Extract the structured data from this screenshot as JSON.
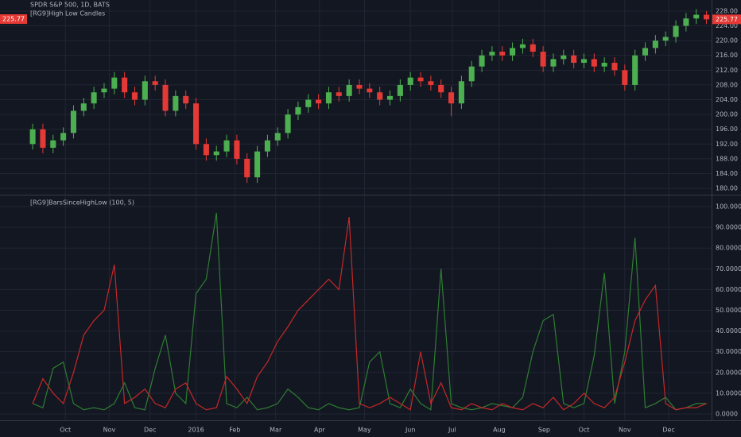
{
  "chart_data": [
    {
      "type": "candlestick",
      "title": "SPDR S&P 500, 1D, BATS",
      "subtitle": "[RG9]High Low Candles",
      "up_color": "#4caf50",
      "down_color": "#e53935",
      "x": [
        0,
        1,
        2,
        3,
        4,
        5,
        6,
        7,
        8,
        9,
        10,
        11,
        12,
        13,
        14,
        15,
        16,
        17,
        18,
        19,
        20,
        21,
        22,
        23,
        24,
        25,
        26,
        27,
        28,
        29,
        30,
        31,
        32,
        33,
        34,
        35,
        36,
        37,
        38,
        39,
        40,
        41,
        42,
        43,
        44,
        45,
        46,
        47,
        48,
        49,
        50,
        51,
        52,
        53,
        54,
        55,
        56,
        57,
        58,
        59,
        60,
        61,
        62,
        63,
        64,
        65,
        66
      ],
      "open": [
        192,
        196,
        191,
        193,
        195,
        201,
        203,
        206,
        207,
        210,
        206,
        204,
        209,
        208,
        201,
        205,
        203,
        192,
        189,
        190,
        193,
        188,
        183,
        190,
        193,
        195,
        200,
        202,
        204,
        203,
        206,
        205,
        208,
        207,
        206,
        204,
        205,
        208,
        210,
        209,
        208,
        206,
        203,
        209,
        213,
        216,
        217,
        216,
        218,
        219,
        217,
        213,
        215,
        216,
        214,
        215,
        213,
        214,
        212,
        208,
        216,
        218,
        220,
        221,
        224,
        226,
        227
      ],
      "high": [
        197.5,
        197.5,
        194.5,
        196.5,
        202.5,
        204.5,
        207.5,
        208.5,
        211.5,
        211.5,
        207.5,
        210.5,
        210.5,
        209.5,
        206.5,
        206.5,
        204.5,
        193.5,
        191.5,
        194.5,
        194.5,
        189.5,
        191.5,
        194.5,
        196.5,
        201.5,
        203.5,
        205.5,
        205.5,
        207.5,
        207.5,
        209.5,
        209.5,
        208.5,
        207.5,
        206.5,
        209.5,
        211.5,
        211.5,
        210.5,
        209.5,
        207.5,
        210.5,
        214.5,
        217.5,
        218.5,
        218.5,
        219.5,
        220.5,
        220.5,
        218.5,
        216.5,
        217.5,
        217.5,
        216.5,
        216.5,
        215.5,
        215.5,
        213.5,
        217.5,
        219.5,
        221.5,
        222.5,
        225.5,
        227.5,
        228.5,
        228
      ],
      "low": [
        190.5,
        189.5,
        189.5,
        191.5,
        193.5,
        199.5,
        201.5,
        204.5,
        205.5,
        204.5,
        202.5,
        202.5,
        206.5,
        199.5,
        199.5,
        201.5,
        190.5,
        187.5,
        187.5,
        188.5,
        186.5,
        181.5,
        181.5,
        188.5,
        191.5,
        193.5,
        198.5,
        200.5,
        201.5,
        201.5,
        203.5,
        203.5,
        205.5,
        204.5,
        202.5,
        202.5,
        203.5,
        206.5,
        207.5,
        206.5,
        204.5,
        199.5,
        201.5,
        207.5,
        211.5,
        214.5,
        214.5,
        214.5,
        216.5,
        215.5,
        211.5,
        211.5,
        213.5,
        212.5,
        212.5,
        211.5,
        211.5,
        210.5,
        206.5,
        206.5,
        214.5,
        216.5,
        218.5,
        219.5,
        222.5,
        224.5,
        224.5
      ],
      "close": [
        196,
        191,
        193,
        195,
        201,
        203,
        206,
        207,
        210,
        206,
        204,
        209,
        208,
        201,
        205,
        203,
        192,
        189,
        190,
        193,
        188,
        183,
        190,
        193,
        195,
        200,
        202,
        204,
        203,
        206,
        205,
        208,
        207,
        206,
        204,
        205,
        208,
        210,
        209,
        208,
        206,
        203,
        209,
        213,
        216,
        217,
        216,
        218,
        219,
        217,
        213,
        215,
        216,
        214,
        215,
        213,
        214,
        212,
        208,
        216,
        218,
        220,
        221,
        224,
        226,
        227,
        225.77
      ],
      "xlim": [
        -3.2,
        66.5
      ],
      "ylim": [
        178.3,
        231
      ],
      "yticks": [
        {
          "value": 180,
          "label": "180.00"
        },
        {
          "value": 184,
          "label": "184.00"
        },
        {
          "value": 188,
          "label": "188.00"
        },
        {
          "value": 192,
          "label": "192.00"
        },
        {
          "value": 196,
          "label": "196.00"
        },
        {
          "value": 200,
          "label": "200.00"
        },
        {
          "value": 204,
          "label": "204.00"
        },
        {
          "value": 208,
          "label": "208.00"
        },
        {
          "value": 212,
          "label": "212.00"
        },
        {
          "value": 216,
          "label": "216.00"
        },
        {
          "value": 220,
          "label": "220.00"
        },
        {
          "value": 224,
          "label": "224.00"
        },
        {
          "value": 228,
          "label": "228.00"
        }
      ],
      "grid": true
    },
    {
      "type": "line",
      "title": "[RG9]BarsSinceHighLow (100, 5)",
      "x": [
        0,
        1,
        2,
        3,
        4,
        5,
        6,
        7,
        8,
        9,
        10,
        11,
        12,
        13,
        14,
        15,
        16,
        17,
        18,
        19,
        20,
        21,
        22,
        23,
        24,
        25,
        26,
        27,
        28,
        29,
        30,
        31,
        32,
        33,
        34,
        35,
        36,
        37,
        38,
        39,
        40,
        41,
        42,
        43,
        44,
        45,
        46,
        47,
        48,
        49,
        50,
        51,
        52,
        53,
        54,
        55,
        56,
        57,
        58,
        59,
        60,
        61,
        62,
        63,
        64,
        65,
        66
      ],
      "series": [
        {
          "color": "#2e7d32",
          "values": [
            5,
            3,
            22,
            25,
            5,
            2,
            3,
            2,
            5,
            15,
            3,
            2,
            22,
            38,
            10,
            5,
            58,
            65,
            97,
            5,
            3,
            8,
            2,
            3,
            5,
            12,
            8,
            3,
            2,
            5,
            3,
            2,
            3,
            25,
            30,
            5,
            3,
            12,
            5,
            2,
            70,
            5,
            3,
            2,
            3,
            5,
            4,
            3,
            8,
            30,
            45,
            48,
            5,
            3,
            5,
            28,
            68,
            5,
            30,
            85,
            3,
            5,
            8,
            2,
            3,
            5,
            5
          ]
        },
        {
          "color": "#c62828",
          "values": [
            5,
            17,
            10,
            5,
            20,
            38,
            45,
            50,
            72,
            5,
            8,
            12,
            5,
            3,
            12,
            15,
            5,
            2,
            3,
            18,
            12,
            5,
            18,
            25,
            35,
            42,
            50,
            55,
            60,
            65,
            60,
            95,
            5,
            3,
            5,
            8,
            5,
            2,
            30,
            5,
            15,
            3,
            2,
            5,
            3,
            2,
            5,
            3,
            2,
            5,
            3,
            8,
            2,
            5,
            10,
            5,
            3,
            8,
            25,
            45,
            55,
            62,
            5,
            2,
            3,
            3,
            5
          ]
        }
      ],
      "xlim": [
        -3.2,
        66.5
      ],
      "ylim": [
        -2.7,
        105
      ],
      "yticks": [
        {
          "value": 0,
          "label": "0.0000"
        },
        {
          "value": 10,
          "label": "10.0000"
        },
        {
          "value": 20,
          "label": "20.0000"
        },
        {
          "value": 30,
          "label": "30.0000"
        },
        {
          "value": 40,
          "label": "40.0000"
        },
        {
          "value": 50,
          "label": "50.0000"
        },
        {
          "value": 60,
          "label": "60.0000"
        },
        {
          "value": 70,
          "label": "70.0000"
        },
        {
          "value": 80,
          "label": "80.0000"
        },
        {
          "value": 90,
          "label": "90.0000"
        },
        {
          "value": 100,
          "label": "100.0000"
        }
      ],
      "xticks": [
        {
          "value": 3.2,
          "label": "Oct"
        },
        {
          "value": 7.5,
          "label": "Nov"
        },
        {
          "value": 11.5,
          "label": "Dec"
        },
        {
          "value": 16,
          "label": "2016"
        },
        {
          "value": 19.8,
          "label": "Feb"
        },
        {
          "value": 23.8,
          "label": "Mar"
        },
        {
          "value": 28.1,
          "label": "Apr"
        },
        {
          "value": 32.5,
          "label": "May"
        },
        {
          "value": 37,
          "label": "Jun"
        },
        {
          "value": 41.1,
          "label": "Jul"
        },
        {
          "value": 45.7,
          "label": "Aug"
        },
        {
          "value": 50.1,
          "label": "Sep"
        },
        {
          "value": 54,
          "label": "Oct"
        },
        {
          "value": 58,
          "label": "Nov"
        },
        {
          "value": 62.3,
          "label": "Dec"
        }
      ],
      "grid": true
    }
  ]
}
